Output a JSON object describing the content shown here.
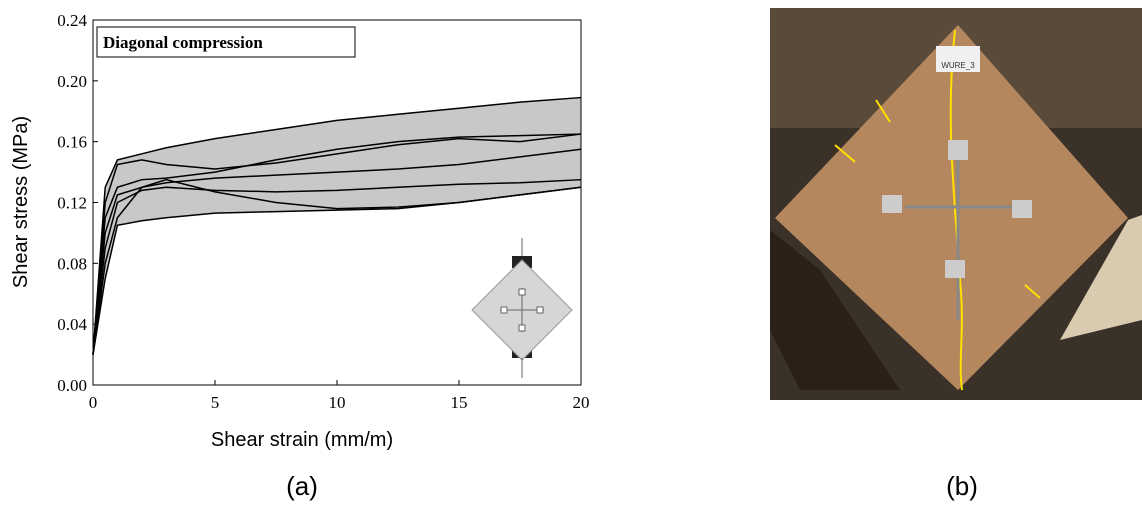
{
  "chart_data": {
    "type": "line",
    "title": "Diagonal compression",
    "x_label": "Shear strain (mm/m)",
    "y_label": "Shear stress (MPa)",
    "x": [
      0,
      0.5,
      1,
      2,
      3,
      5,
      7.5,
      10,
      12.5,
      15,
      17.5,
      20
    ],
    "series": [
      {
        "color": "#000000",
        "values": [
          0.02,
          0.13,
          0.148,
          0.152,
          0.156,
          0.162,
          0.168,
          0.174,
          0.178,
          0.182,
          0.186,
          0.189
        ]
      },
      {
        "color": "#000000",
        "values": [
          0.02,
          0.12,
          0.145,
          0.148,
          0.145,
          0.142,
          0.146,
          0.152,
          0.158,
          0.162,
          0.16,
          0.165
        ]
      },
      {
        "color": "#000000",
        "values": [
          0.02,
          0.11,
          0.13,
          0.135,
          0.136,
          0.14,
          0.148,
          0.155,
          0.16,
          0.163,
          0.164,
          0.165
        ]
      },
      {
        "color": "#000000",
        "values": [
          0.02,
          0.1,
          0.125,
          0.13,
          0.133,
          0.136,
          0.138,
          0.14,
          0.142,
          0.145,
          0.15,
          0.155
        ]
      },
      {
        "color": "#000000",
        "values": [
          0.02,
          0.09,
          0.12,
          0.128,
          0.13,
          0.128,
          0.127,
          0.128,
          0.13,
          0.132,
          0.133,
          0.135
        ]
      },
      {
        "color": "#000000",
        "values": [
          0.02,
          0.08,
          0.11,
          0.13,
          0.135,
          0.127,
          0.12,
          0.116,
          0.117,
          0.12,
          0.125,
          0.13
        ]
      },
      {
        "color": "#000000",
        "values": [
          0.02,
          0.07,
          0.105,
          0.108,
          0.11,
          0.113,
          0.114,
          0.115,
          0.116,
          0.12,
          0.125,
          0.13
        ]
      }
    ],
    "envelope_color": "#c8c8c8",
    "xlim": [
      0,
      20
    ],
    "xticks": [
      0,
      5,
      10,
      15,
      20
    ],
    "ylim": [
      0,
      0.24
    ],
    "yticks": [
      {
        "value": 0,
        "label": "0.00"
      },
      {
        "value": 0.04,
        "label": "0.04"
      },
      {
        "value": 0.08,
        "label": "0.08"
      },
      {
        "value": 0.12,
        "label": "0.12"
      },
      {
        "value": 0.16,
        "label": "0.16"
      },
      {
        "value": 0.2,
        "label": "0.20"
      },
      {
        "value": 0.24,
        "label": "0.24"
      }
    ]
  },
  "captions": [
    "(a)",
    "(b)"
  ],
  "photo_label": "WURE_3"
}
